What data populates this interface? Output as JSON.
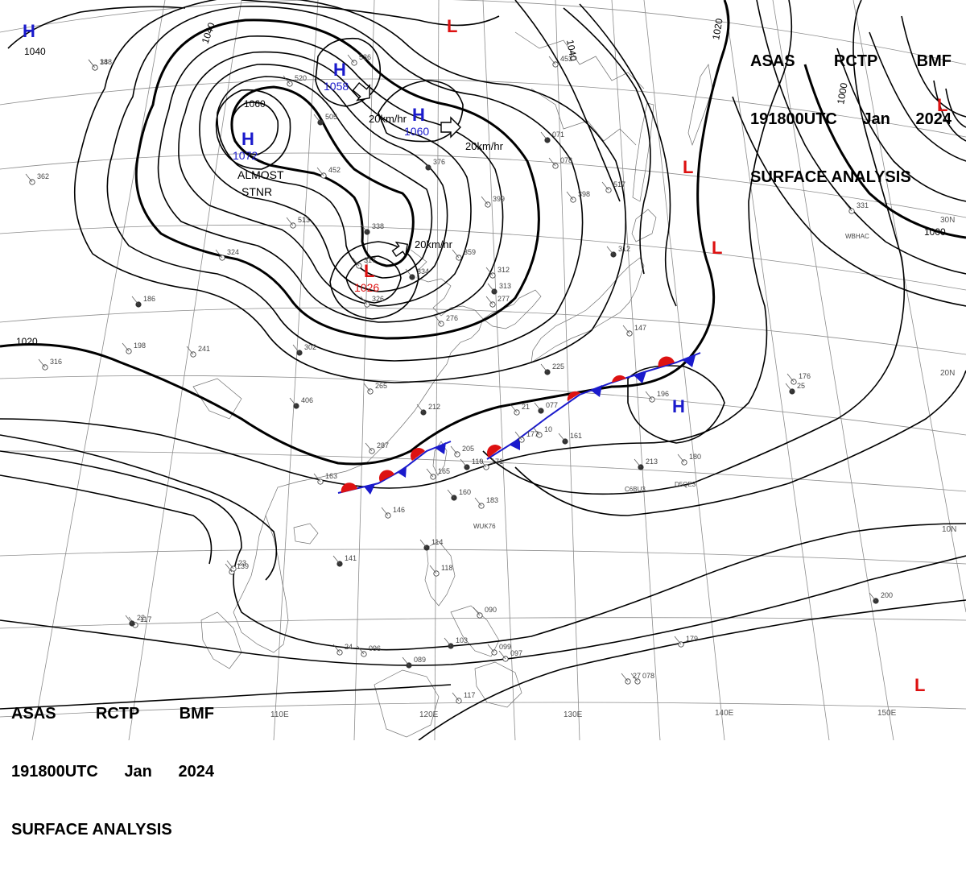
{
  "title": {
    "lines": [
      [
        "ASAS",
        "RCTP",
        "BMF"
      ],
      [
        "191800UTC",
        "Jan",
        "2024"
      ],
      [
        "SURFACE ANALYSIS"
      ]
    ]
  },
  "isobar_labels": [
    "1040",
    "1040",
    "1040",
    "1060",
    "1020",
    "1020",
    "1000",
    "1000"
  ],
  "pressure_centers": [
    {
      "type": "H",
      "value": "1072",
      "color": "#1a1acc"
    },
    {
      "type": "H",
      "value": "1058",
      "color": "#1a1acc"
    },
    {
      "type": "H",
      "value": "1060",
      "color": "#1a1acc"
    },
    {
      "type": "H",
      "value": "",
      "color": "#1a1acc"
    },
    {
      "type": "H",
      "value": "",
      "color": "#1a1acc"
    },
    {
      "type": "L",
      "value": "1026",
      "color": "#dd1111"
    },
    {
      "type": "L",
      "value": "",
      "color": "#dd1111"
    },
    {
      "type": "L",
      "value": "",
      "color": "#dd1111"
    },
    {
      "type": "L",
      "value": "",
      "color": "#dd1111"
    },
    {
      "type": "L",
      "value": "",
      "color": "#dd1111"
    },
    {
      "type": "L",
      "value": "",
      "color": "#dd1111"
    }
  ],
  "movements": [
    "20km/hr",
    "20km/hr",
    "20km/hr"
  ],
  "notes": [
    "ALMOST",
    "STNR"
  ],
  "longitude_labels": [
    "110E",
    "120E",
    "130E",
    "140E",
    "150E"
  ],
  "latitude_labels": [
    "30N",
    "20N",
    "10N"
  ],
  "station_plots": [
    "348",
    "520",
    "536",
    "505",
    "452",
    "513",
    "338",
    "317",
    "326",
    "334",
    "359",
    "312",
    "313",
    "277",
    "276",
    "302",
    "241",
    "198",
    "186",
    "324",
    "362",
    "406",
    "265",
    "287",
    "212",
    "205",
    "165",
    "160",
    "163",
    "146",
    "141",
    "139",
    "117",
    "114",
    "118",
    "090",
    "103",
    "099",
    "097",
    "089",
    "096",
    "117",
    "077",
    "177",
    "171",
    "161",
    "183",
    "147",
    "225",
    "196",
    "176",
    "213",
    "180",
    "179",
    "200",
    "078",
    "078",
    "071",
    "398",
    "399",
    "376",
    "453",
    "517",
    "312",
    "331",
    "316",
    "110",
    "10",
    "23",
    "22",
    "24",
    "27",
    "25",
    "21",
    "18"
  ],
  "ship_ids": [
    "WUK76",
    "C6BU3",
    "D5QE3",
    "WBHAC"
  ],
  "colors": {
    "high": "#1a1acc",
    "low": "#dd1111",
    "warm_front": "#dd1111",
    "cold_front": "#1a1acc",
    "isobar": "#000000",
    "grid": "#8c8c8c"
  }
}
